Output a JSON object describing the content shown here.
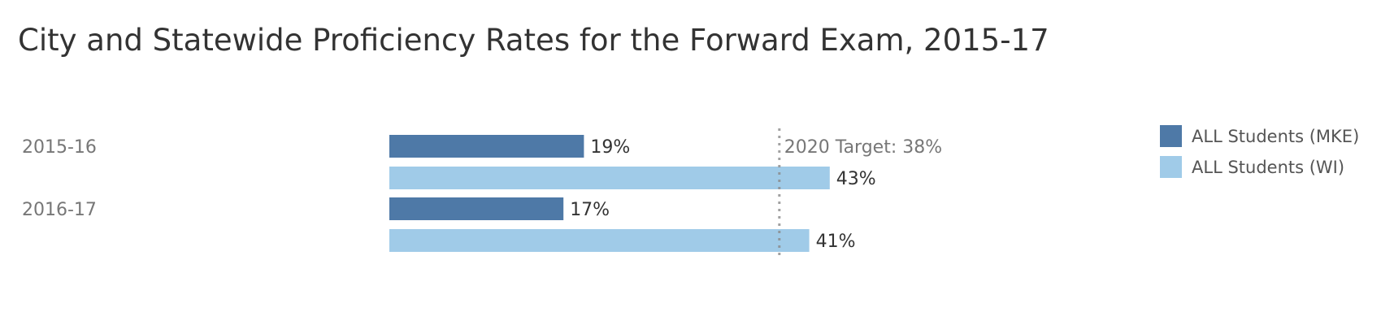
{
  "chart_data": {
    "type": "bar",
    "orientation": "horizontal",
    "title": "City and Statewide Proficiency Rates for the Forward Exam, 2015-17",
    "categories": [
      "2015-16",
      "2016-17"
    ],
    "series": [
      {
        "name": "ALL Students (MKE)",
        "color": "#4e79a7",
        "values": [
          19,
          17
        ],
        "labels": [
          "19%",
          "17%"
        ]
      },
      {
        "name": "ALL Students (WI)",
        "color": "#a0cbe8",
        "values": [
          43,
          41
        ],
        "labels": [
          "43%",
          "41%"
        ]
      }
    ],
    "xlim": [
      0,
      100
    ],
    "reference_line": {
      "value": 38,
      "label": "2020 Target: 38%",
      "style": "dotted"
    },
    "legend_position": "top-right",
    "grid": false
  }
}
